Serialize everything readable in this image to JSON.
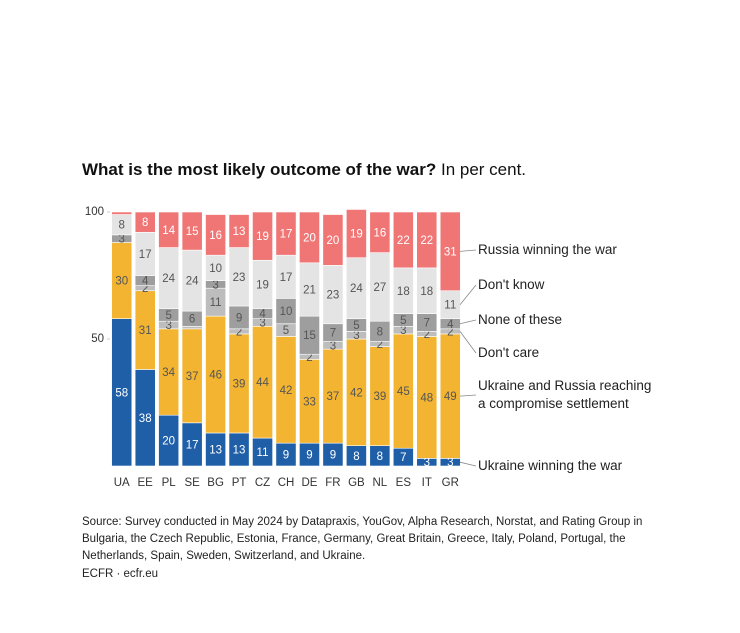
{
  "chart_data": {
    "type": "stacked-bar",
    "title": "What is the most likely outcome of the war?",
    "subtitle": "In per cent.",
    "categories": [
      "UA",
      "EE",
      "PL",
      "SE",
      "BG",
      "PT",
      "CZ",
      "CH",
      "DE",
      "FR",
      "GB",
      "NL",
      "ES",
      "IT",
      "GR"
    ],
    "series": [
      {
        "name": "Ukraine winning the war",
        "color": "#1f5fa8",
        "values": [
          58,
          38,
          20,
          17,
          13,
          13,
          11,
          9,
          9,
          9,
          8,
          8,
          7,
          3,
          3
        ]
      },
      {
        "name": "Ukraine and Russia reaching a compromise settlement",
        "color": "#f2b431",
        "values": [
          30,
          31,
          34,
          37,
          46,
          39,
          44,
          42,
          33,
          37,
          42,
          39,
          45,
          48,
          49
        ]
      },
      {
        "name": "Don't care",
        "color": "#bdbdbd",
        "values": [
          0,
          2,
          3,
          1,
          11,
          2,
          3,
          5,
          2,
          3,
          3,
          2,
          3,
          2,
          2
        ]
      },
      {
        "name": "None of these",
        "color": "#9e9e9e",
        "values": [
          3,
          4,
          5,
          6,
          3,
          9,
          4,
          10,
          15,
          7,
          5,
          8,
          5,
          7,
          4
        ]
      },
      {
        "name": "Don't know",
        "color": "#e4e4e4",
        "values": [
          8,
          17,
          24,
          24,
          10,
          23,
          19,
          17,
          21,
          23,
          24,
          27,
          18,
          18,
          11
        ]
      },
      {
        "name": "Russia winning the war",
        "color": "#f07676",
        "values": [
          1,
          8,
          14,
          15,
          16,
          13,
          19,
          17,
          20,
          20,
          19,
          16,
          22,
          22,
          31
        ]
      }
    ],
    "ylim": [
      0,
      100
    ],
    "yticks": [
      50,
      100
    ],
    "source": "Source: Survey conducted in May 2024 by Datapraxis, YouGov, Alpha Research, Norstat, and Rating Group in Bulgaria, the Czech Republic, Estonia, France, Germany, Great Britain, Greece, Italy, Poland, Portugal, the Netherlands, Spain, Sweden, Switzerland, and Ukraine.",
    "credit": "ECFR · ecfr.eu"
  }
}
